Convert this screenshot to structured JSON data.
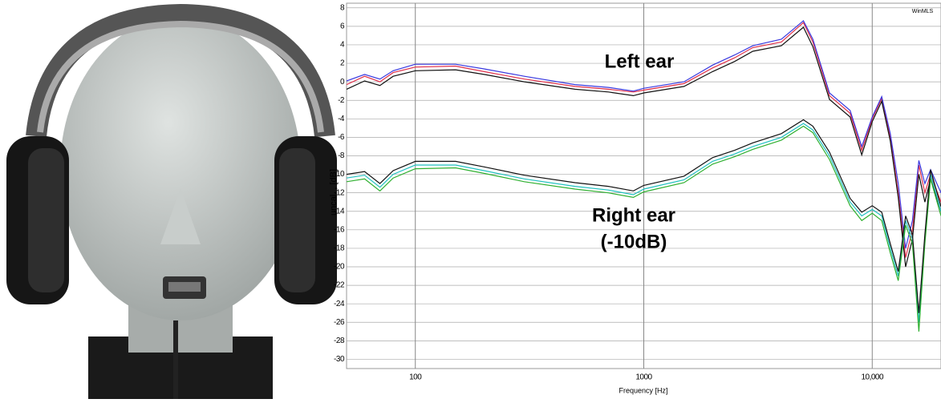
{
  "chart_data": {
    "type": "line",
    "x_label": "Frequency [Hz]",
    "y_label": "uncal. , [dB]",
    "corner_text": "WinMLS",
    "annotations": [
      "Left ear",
      "Right ear",
      "(-10dB)"
    ],
    "log_x": true,
    "grid": true,
    "xlim": [
      50,
      20000
    ],
    "xticks": [
      100,
      1000,
      {
        "value": 10000,
        "label": "10,000"
      }
    ],
    "ylim": [
      -31,
      8.5
    ],
    "yticks": [
      8,
      6,
      4,
      2,
      0,
      -2,
      -4,
      -6,
      -8,
      -10,
      -12,
      -14,
      -16,
      -18,
      -20,
      -22,
      -24,
      -26,
      -28,
      -30
    ],
    "x": [
      50,
      60,
      70,
      80,
      100,
      150,
      200,
      300,
      500,
      700,
      900,
      1000,
      1500,
      2000,
      2500,
      3000,
      4000,
      5000,
      5500,
      6500,
      8000,
      9000,
      10000,
      11000,
      12000,
      13000,
      14000,
      15000,
      16000,
      17000,
      18000,
      20000
    ],
    "series": [
      {
        "color": "#e0304a",
        "values": [
          -0.3,
          0.6,
          0,
          1.0,
          1.6,
          1.7,
          1.1,
          0.3,
          -0.5,
          -0.8,
          -1.1,
          -0.9,
          -0.2,
          1.5,
          2.6,
          3.7,
          4.3,
          6.4,
          4.3,
          -1.5,
          -3.4,
          -7.4,
          -4,
          -1.8,
          -6,
          -12,
          -19,
          -16,
          -9,
          -12,
          -10,
          -13
        ]
      },
      {
        "color": "#3a3ae0",
        "values": [
          0.1,
          0.8,
          0.3,
          1.2,
          1.9,
          1.9,
          1.4,
          0.6,
          -0.3,
          -0.6,
          -1.0,
          -0.7,
          0.0,
          1.8,
          2.9,
          3.9,
          4.6,
          6.6,
          4.6,
          -1.2,
          -3.1,
          -7.0,
          -3.8,
          -1.6,
          -5.6,
          -11,
          -18,
          -15,
          -8.5,
          -11,
          -9.5,
          -12
        ]
      },
      {
        "color": "#111111",
        "values": [
          -0.8,
          0.1,
          -0.4,
          0.6,
          1.2,
          1.3,
          0.8,
          0.0,
          -0.8,
          -1.1,
          -1.5,
          -1.2,
          -0.5,
          1.1,
          2.2,
          3.3,
          3.9,
          5.9,
          3.8,
          -1.9,
          -3.8,
          -7.9,
          -4.3,
          -2.1,
          -6.4,
          -12.5,
          -20,
          -17,
          -10,
          -13,
          -10.5,
          -14
        ]
      },
      {
        "color": "#20c0c0",
        "values": [
          -10.4,
          -10.1,
          -11.4,
          -10.0,
          -9.0,
          -9.0,
          -9.6,
          -10.5,
          -11.3,
          -11.7,
          -12.2,
          -11.6,
          -10.6,
          -8.6,
          -7.8,
          -7.0,
          -6.0,
          -4.5,
          -5.2,
          -8.0,
          -13.0,
          -14.5,
          -13.8,
          -14.5,
          -18,
          -21,
          -15,
          -17,
          -26,
          -17,
          -10,
          -14
        ]
      },
      {
        "color": "#30b030",
        "values": [
          -10.8,
          -10.5,
          -11.8,
          -10.4,
          -9.4,
          -9.3,
          -9.9,
          -10.8,
          -11.6,
          -12.0,
          -12.5,
          -11.9,
          -10.9,
          -8.9,
          -8.1,
          -7.3,
          -6.3,
          -4.8,
          -5.5,
          -8.4,
          -13.4,
          -15.0,
          -14.2,
          -15.0,
          -18.5,
          -21.5,
          -15.5,
          -17.5,
          -27,
          -17.5,
          -10.5,
          -14.5
        ]
      },
      {
        "color": "#111111",
        "values": [
          -10.0,
          -9.7,
          -11.0,
          -9.6,
          -8.6,
          -8.6,
          -9.2,
          -10.1,
          -10.9,
          -11.3,
          -11.8,
          -11.2,
          -10.2,
          -8.2,
          -7.4,
          -6.6,
          -5.6,
          -4.1,
          -4.8,
          -7.6,
          -12.6,
          -14.1,
          -13.4,
          -14.1,
          -17.5,
          -20.5,
          -14.5,
          -16.5,
          -25,
          -16.5,
          -9.5,
          -13.5
        ]
      }
    ]
  }
}
